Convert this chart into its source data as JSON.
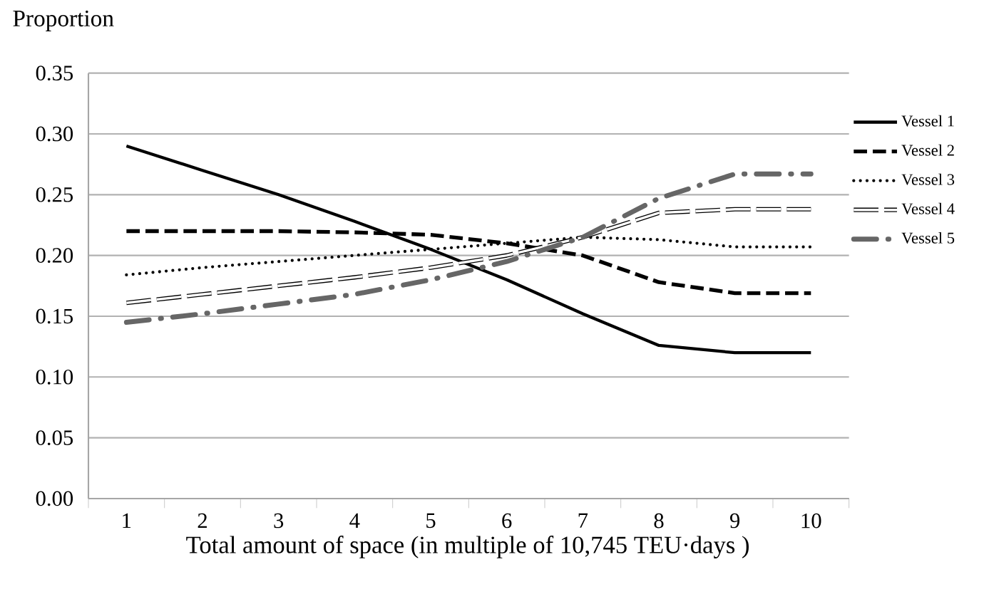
{
  "chart_data": {
    "type": "line",
    "ylabel": "Proportion",
    "xlabel": "Total amount of space (in multiple of 10,745 TEU·days )",
    "categories": [
      "1",
      "2",
      "3",
      "4",
      "5",
      "6",
      "7",
      "8",
      "9",
      "10"
    ],
    "ylim": [
      0,
      0.35
    ],
    "yticks": [
      {
        "value": 0,
        "label": "0.00"
      },
      {
        "value": 0.05,
        "label": "0.05"
      },
      {
        "value": 0.1,
        "label": "0.10"
      },
      {
        "value": 0.15,
        "label": "0.15"
      },
      {
        "value": 0.2,
        "label": "0.20"
      },
      {
        "value": 0.25,
        "label": "0.25"
      },
      {
        "value": 0.3,
        "label": "0.30"
      },
      {
        "value": 0.35,
        "label": "0.35"
      }
    ],
    "grid": "y",
    "legend": "right",
    "marker": "none",
    "series": [
      {
        "name": "Vessel 1",
        "color": "#000000",
        "line_style": "solid",
        "values": [
          0.29,
          0.27,
          0.25,
          0.228,
          0.205,
          0.18,
          0.152,
          0.126,
          0.12,
          0.12
        ]
      },
      {
        "name": "Vessel 2",
        "color": "#000000",
        "line_style": "dashed",
        "values": [
          0.22,
          0.22,
          0.22,
          0.219,
          0.217,
          0.21,
          0.2,
          0.178,
          0.169,
          0.169
        ]
      },
      {
        "name": "Vessel 3",
        "color": "#000000",
        "line_style": "dotted",
        "values": [
          0.184,
          0.19,
          0.195,
          0.2,
          0.205,
          0.21,
          0.215,
          0.213,
          0.207,
          0.207
        ]
      },
      {
        "name": "Vessel 4",
        "color": "#000000",
        "line_style": "longdash",
        "values": [
          0.161,
          0.168,
          0.175,
          0.182,
          0.19,
          0.2,
          0.215,
          0.235,
          0.238,
          0.238
        ]
      },
      {
        "name": "Vessel 5",
        "color": "#666666",
        "line_style": "dashdot",
        "values": [
          0.145,
          0.152,
          0.16,
          0.168,
          0.18,
          0.195,
          0.215,
          0.247,
          0.267,
          0.267
        ]
      }
    ]
  }
}
